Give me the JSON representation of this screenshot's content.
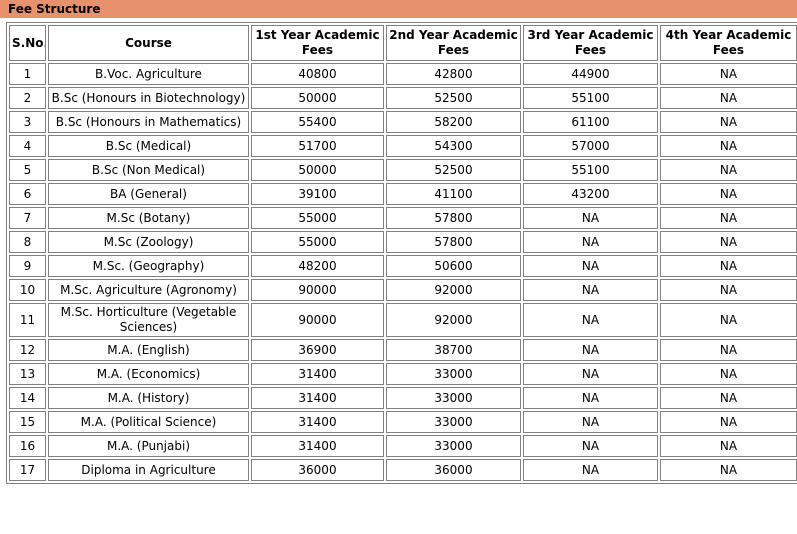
{
  "page": {
    "section_title": "Fee Structure"
  },
  "colors": {
    "title_bar_bg": "#E8916D",
    "table_border": "#808080",
    "text": "#000000",
    "cell_bg": "#FFFFFF"
  },
  "table": {
    "headers": [
      "S.No.",
      "Course",
      "1st Year Academic Fees",
      "2nd Year Academic Fees",
      "3rd Year Academic Fees",
      "4th Year Academic Fees"
    ],
    "rows": [
      [
        "1",
        "B.Voc. Agriculture",
        "40800",
        "42800",
        "44900",
        "NA"
      ],
      [
        "2",
        "B.Sc (Honours in Biotechnology)",
        "50000",
        "52500",
        "55100",
        "NA"
      ],
      [
        "3",
        "B.Sc (Honours in Mathematics)",
        "55400",
        "58200",
        "61100",
        "NA"
      ],
      [
        "4",
        "B.Sc (Medical)",
        "51700",
        "54300",
        "57000",
        "NA"
      ],
      [
        "5",
        "B.Sc (Non Medical)",
        "50000",
        "52500",
        "55100",
        "NA"
      ],
      [
        "6",
        "BA (General)",
        "39100",
        "41100",
        "43200",
        "NA"
      ],
      [
        "7",
        "M.Sc (Botany)",
        "55000",
        "57800",
        "NA",
        "NA"
      ],
      [
        "8",
        "M.Sc (Zoology)",
        "55000",
        "57800",
        "NA",
        "NA"
      ],
      [
        "9",
        "M.Sc. (Geography)",
        "48200",
        "50600",
        "NA",
        "NA"
      ],
      [
        "10",
        "M.Sc. Agriculture (Agronomy)",
        "90000",
        "92000",
        "NA",
        "NA"
      ],
      [
        "11",
        "M.Sc. Horticulture (Vegetable Sciences)",
        "90000",
        "92000",
        "NA",
        "NA"
      ],
      [
        "12",
        "M.A. (English)",
        "36900",
        "38700",
        "NA",
        "NA"
      ],
      [
        "13",
        "M.A. (Economics)",
        "31400",
        "33000",
        "NA",
        "NA"
      ],
      [
        "14",
        "M.A. (History)",
        "31400",
        "33000",
        "NA",
        "NA"
      ],
      [
        "15",
        "M.A. (Political Science)",
        "31400",
        "33000",
        "NA",
        "NA"
      ],
      [
        "16",
        "M.A. (Punjabi)",
        "31400",
        "33000",
        "NA",
        "NA"
      ],
      [
        "17",
        "Diploma in Agriculture",
        "36000",
        "36000",
        "NA",
        "NA"
      ]
    ]
  }
}
